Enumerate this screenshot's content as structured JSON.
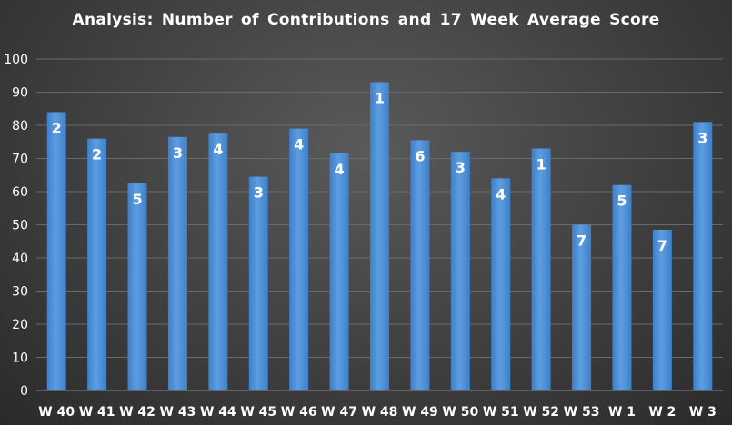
{
  "chart_data": {
    "type": "bar",
    "title": "Analysis:  Number  of  Contributions  and  17  Week  Average  Score",
    "categories": [
      "W 40",
      "W 41",
      "W 42",
      "W 43",
      "W 44",
      "W 45",
      "W 46",
      "W 47",
      "W 48",
      "W 49",
      "W 50",
      "W 51",
      "W 52",
      "W 53",
      "W 1",
      "W 2",
      "W 3"
    ],
    "values": [
      84,
      76,
      62.5,
      76.5,
      77.5,
      64.5,
      79,
      71.5,
      93,
      75.5,
      72,
      64,
      73,
      50,
      62,
      48.5,
      81
    ],
    "data_labels": [
      "2",
      "2",
      "5",
      "3",
      "4",
      "3",
      "4",
      "4",
      "1",
      "6",
      "3",
      "4",
      "1",
      "7",
      "5",
      "7",
      "3"
    ],
    "y_ticks": [
      "0",
      "10",
      "20",
      "30",
      "40",
      "50",
      "60",
      "70",
      "80",
      "90",
      "100"
    ],
    "ylim": [
      0,
      100
    ],
    "grid": true,
    "xlabel": "",
    "ylabel": "",
    "bar_color": "#4f8fd6"
  }
}
